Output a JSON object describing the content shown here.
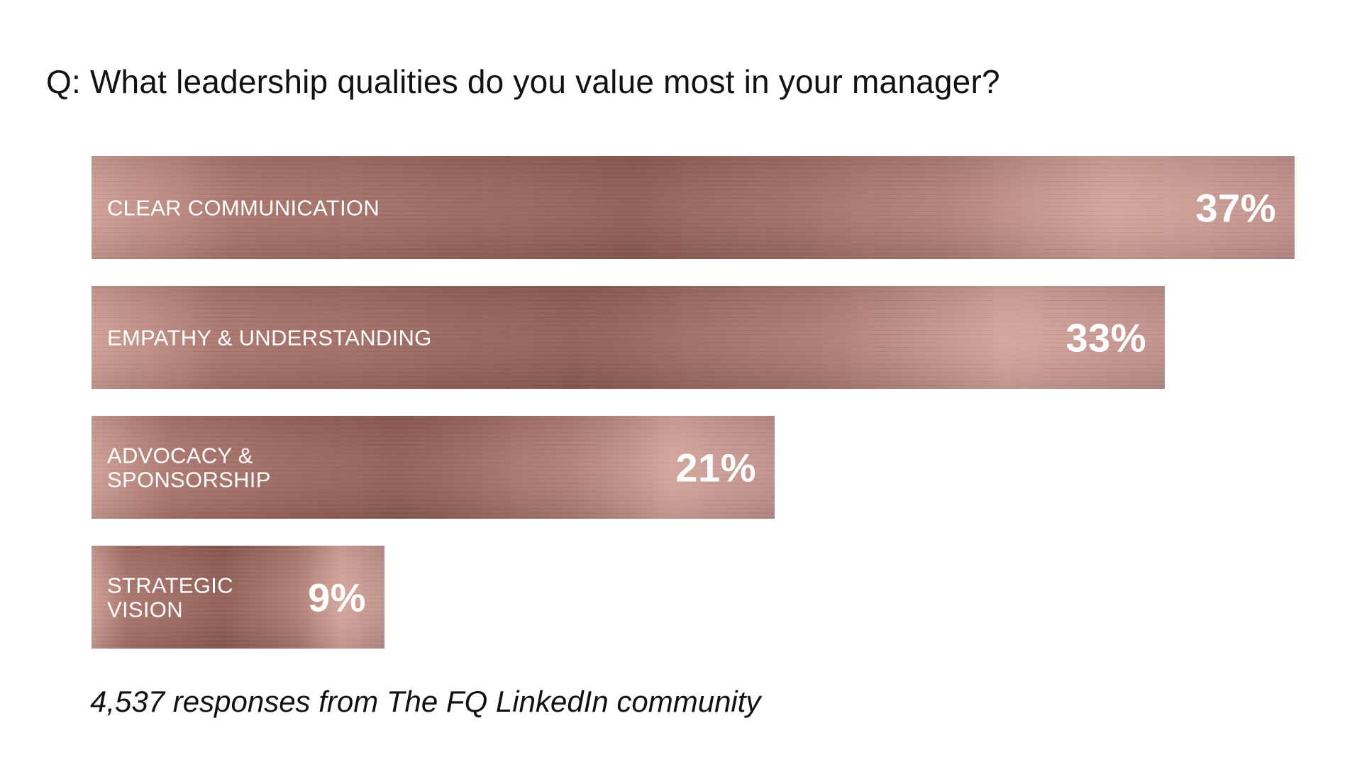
{
  "question": "Q: What leadership qualities do you value most in your manager?",
  "footnote": "4,537 responses from The FQ LinkedIn community",
  "colors": {
    "bar_dark": "#8f5b52",
    "bar_mid": "#a8736a",
    "bar_light": "#d4a59b",
    "text": "#111111",
    "label": "#ffffff"
  },
  "chart_data": {
    "type": "bar",
    "orientation": "horizontal",
    "categories": [
      [
        "CLEAR COMMUNICATION"
      ],
      [
        "EMPATHY & UNDERSTANDING"
      ],
      [
        "ADVOCACY &",
        "SPONSORSHIP"
      ],
      [
        "STRATEGIC",
        "VISION"
      ]
    ],
    "values": [
      37,
      33,
      21,
      9
    ],
    "value_labels": [
      "37%",
      "33%",
      "21%",
      "9%"
    ],
    "unit": "%",
    "xlim": [
      0,
      37
    ],
    "grid": false,
    "legend": "none"
  }
}
